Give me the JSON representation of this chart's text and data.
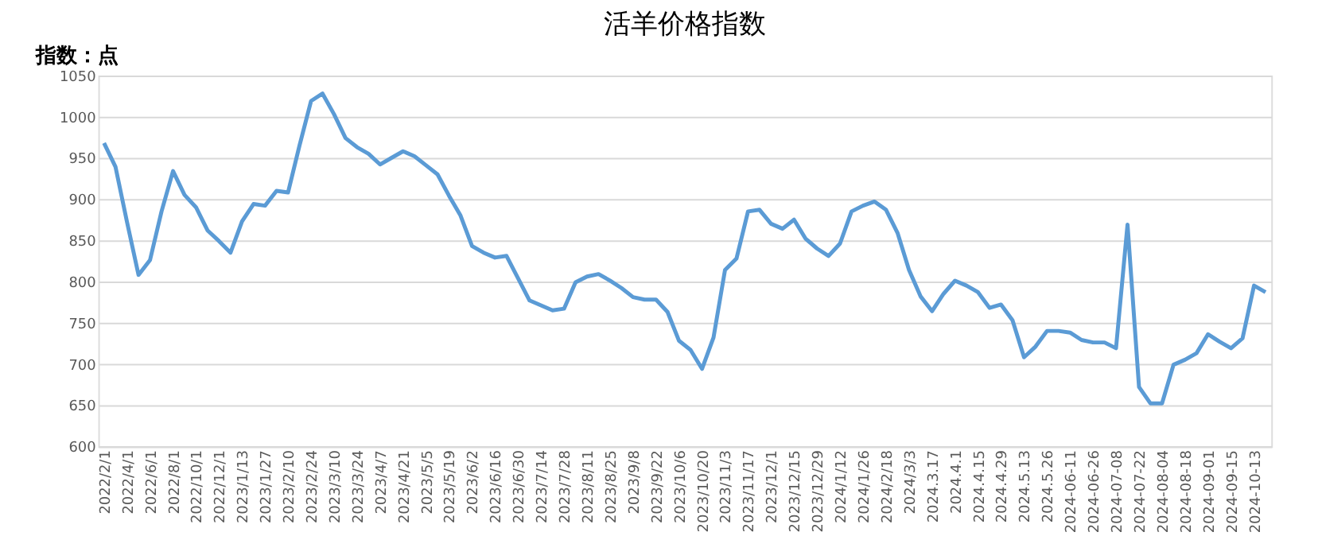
{
  "chart_data": {
    "type": "line",
    "title": "活羊价格指数",
    "ylabel": "指数：点",
    "categories": [
      "2022/2/1",
      null,
      "2022/4/1",
      null,
      "2022/6/1",
      null,
      "2022/8/1",
      null,
      "2022/10/1",
      null,
      "2022/12/1",
      null,
      "2023/1/13",
      null,
      "2023/1/27",
      null,
      "2023/2/10",
      null,
      "2023/2/24",
      null,
      "2023/3/10",
      null,
      "2023/3/24",
      null,
      "2023/4/7",
      null,
      "2023/4/21",
      null,
      "2023/5/5",
      null,
      "2023/5/19",
      null,
      "2023/6/2",
      null,
      "2023/6/16",
      null,
      "2023/6/30",
      null,
      "2023/7/14",
      null,
      "2023/7/28",
      null,
      "2023/8/11",
      null,
      "2023/8/25",
      null,
      "2023/9/8",
      null,
      "2023/9/22",
      null,
      "2023/10/6",
      null,
      "2023/10/20",
      null,
      "2023/11/3",
      null,
      "2023/11/17",
      null,
      "2023/12/1",
      null,
      "2023/12/15",
      null,
      "2023/12/29",
      null,
      "2024/1/12",
      null,
      "2024/1/26",
      null,
      "2024/2/18",
      null,
      "2024/3/3",
      null,
      "2024.3.17",
      null,
      "2024.4.1",
      null,
      "2024.4.15",
      null,
      "2024.4.29",
      null,
      "2024.5.13",
      null,
      "2024.5.26",
      null,
      "2024-06-11",
      null,
      "2024-06-26",
      null,
      "2024-07-08",
      null,
      "2024-07-22",
      null,
      "2024-08-04",
      null,
      "2024-08-18",
      null,
      "2024-09-01",
      null,
      "2024-09-15",
      null,
      "2024-10-13",
      null
    ],
    "series": [
      {
        "color": "#5b9bd5",
        "values": [
          968,
          939,
          872,
          808,
          826,
          885,
          934,
          905,
          890,
          862,
          849,
          835,
          873,
          894,
          892,
          910,
          908,
          965,
          1019,
          1028,
          1003,
          974,
          963,
          955,
          942,
          950,
          958,
          952,
          941,
          930,
          904,
          880,
          843,
          835,
          829,
          831,
          804,
          777,
          771,
          765,
          767,
          799,
          806,
          809,
          801,
          792,
          781,
          778,
          778,
          763,
          728,
          717,
          694,
          732,
          814,
          828,
          885,
          887,
          870,
          864,
          875,
          852,
          840,
          831,
          846,
          885,
          892,
          897,
          887,
          859,
          814,
          782,
          764,
          785,
          801,
          795,
          787,
          768,
          772,
          753,
          708,
          721,
          740,
          740,
          738,
          729,
          726,
          726,
          719,
          869,
          672,
          652,
          652,
          699,
          705,
          713,
          736,
          727,
          719,
          731,
          795,
          787
        ]
      }
    ],
    "ylim": [
      600,
      1050
    ],
    "yticks": [
      600,
      650,
      700,
      750,
      800,
      850,
      900,
      950,
      1000,
      1050
    ],
    "grid": "y",
    "marker": "none",
    "line_style": "solid"
  }
}
